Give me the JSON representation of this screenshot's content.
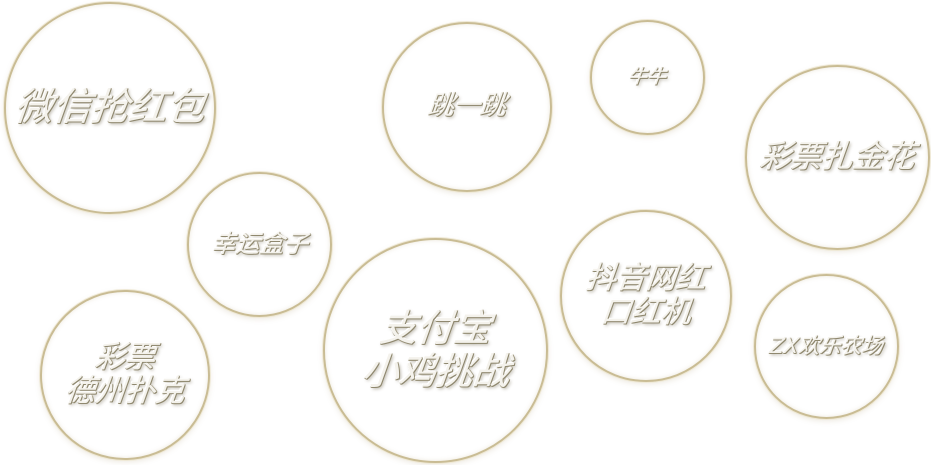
{
  "games": {
    "wechat_redpacket": {
      "lines": [
        "微信抢红包"
      ]
    },
    "jump_jump": {
      "lines": [
        "跳一跳"
      ]
    },
    "niuniu": {
      "lines": [
        "牛牛"
      ]
    },
    "lottery_zhajinhua": {
      "lines": [
        "彩票扎金花"
      ]
    },
    "lucky_box": {
      "lines": [
        "幸运盒子"
      ]
    },
    "alipay_chick": {
      "lines": [
        "支付宝",
        "小鸡挑战"
      ]
    },
    "douyin_lipstick": {
      "lines": [
        "抖音网红",
        "口红机"
      ]
    },
    "lottery_texas": {
      "lines": [
        "彩票",
        "德州扑克"
      ]
    },
    "zx_farm": {
      "lines": [
        "ZX欢乐农场"
      ]
    }
  },
  "colors": {
    "ring": "#c9bc94",
    "text": "#f4f2ec",
    "background": "#ffffff"
  }
}
